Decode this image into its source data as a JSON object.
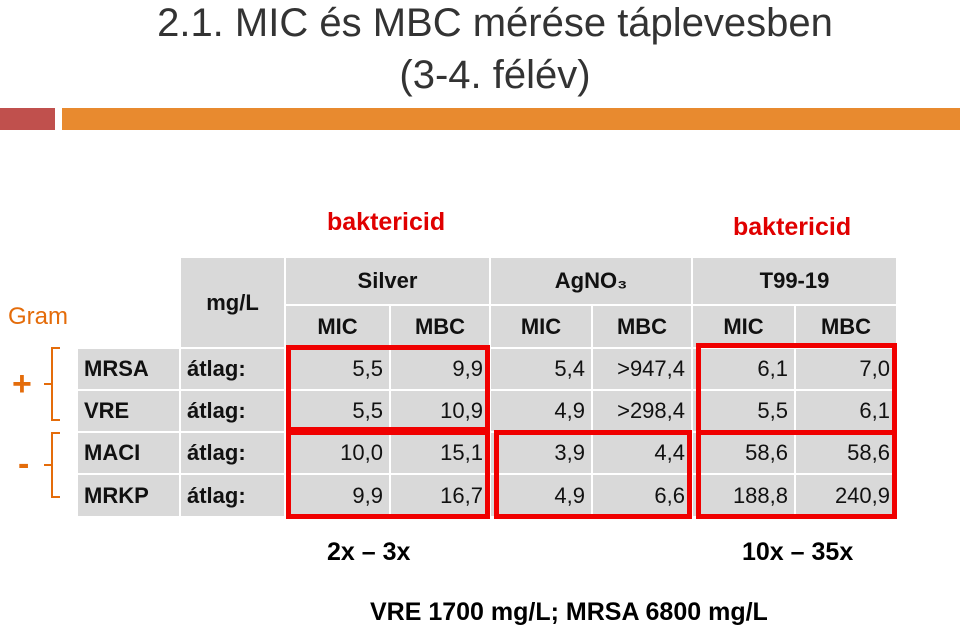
{
  "title_lines": [
    "2.1. MIC és MBC mérése táplevesben",
    "(3-4. félév)"
  ],
  "annotations": {
    "bactericid_left": "baktericid",
    "bactericid_right": "baktericid",
    "gram": "Gram",
    "gram_positive": "+",
    "gram_negative": "-",
    "range_left": "2x – 3x",
    "range_right": "10x – 35x",
    "footnote": "VRE 1700 mg/L; MRSA 6800 mg/L"
  },
  "table": {
    "unit": "mg/L",
    "groups": [
      "Silver",
      "AgNO₃",
      "T99-19"
    ],
    "subheaders": [
      "MIC",
      "MBC",
      "MIC",
      "MBC",
      "MIC",
      "MBC"
    ],
    "rows": [
      [
        "MRSA",
        "átlag:",
        "5,5",
        "9,9",
        "5,4",
        ">947,4",
        "6,1",
        "7,0"
      ],
      [
        "VRE",
        "átlag:",
        "5,5",
        "10,9",
        "4,9",
        ">298,4",
        "5,5",
        "6,1"
      ],
      [
        "MACI",
        "átlag:",
        "10,0",
        "15,1",
        "3,9",
        "4,4",
        "58,6",
        "58,6"
      ],
      [
        "MRKP",
        "átlag:",
        "9,9",
        "16,7",
        "4,9",
        "6,6",
        "188,8",
        "240,9"
      ]
    ]
  }
}
